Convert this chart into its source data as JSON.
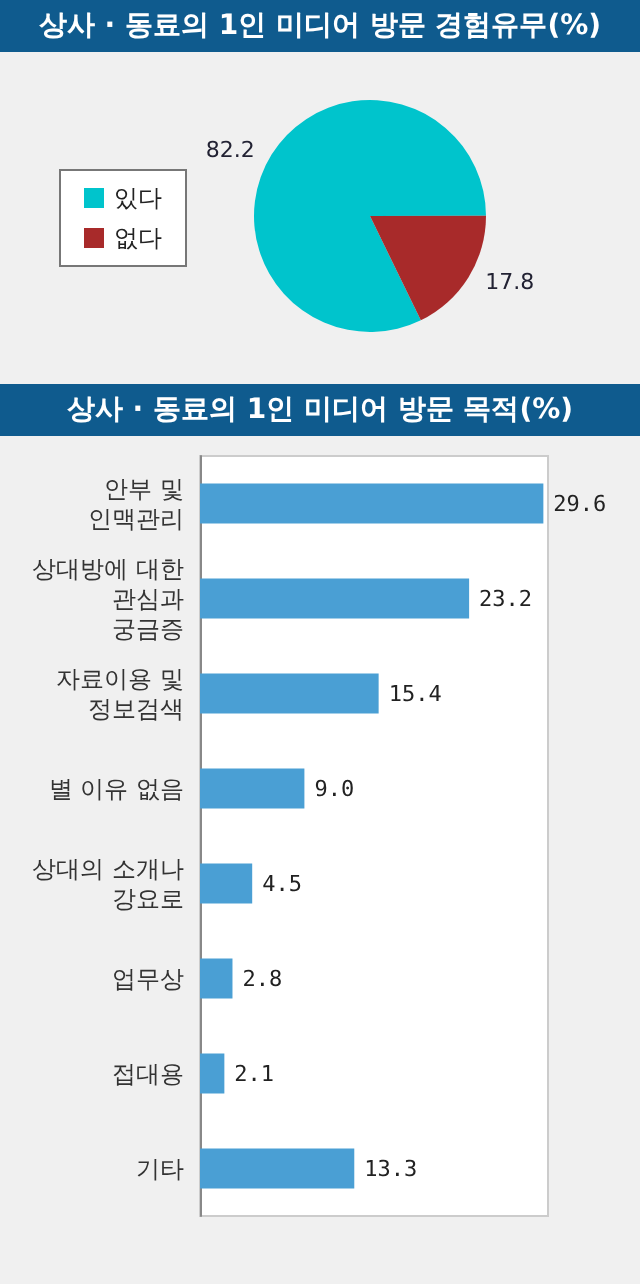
{
  "chart_data": [
    {
      "type": "pie",
      "title": "상사 · 동료의 1인 미디어 방문 경험유무(%)",
      "categories": [
        "있다",
        "없다"
      ],
      "values": [
        82.2,
        17.8
      ],
      "colors": [
        "#00c4cc",
        "#a82a2a"
      ],
      "data_labels": true,
      "legend": "left"
    },
    {
      "type": "bar",
      "title": "상사 · 동료의 1인 미디어 방문 목적(%)",
      "orientation": "horizontal",
      "categories": [
        "안부 및\n인맥관리",
        "상대방에 대한\n관심과\n궁금증",
        "자료이용 및\n정보검색",
        "별 이유 없음",
        "상대의 소개나\n강요로",
        "업무상",
        "접대용",
        "기타"
      ],
      "values": [
        29.6,
        23.2,
        15.4,
        9.0,
        4.5,
        2.8,
        2.1,
        13.3
      ],
      "value_labels": [
        "29.6",
        "23.2",
        "15.4",
        "9.0",
        "4.5",
        "2.8",
        "2.1",
        "13.3"
      ],
      "color": "#4a9fd4"
    }
  ]
}
